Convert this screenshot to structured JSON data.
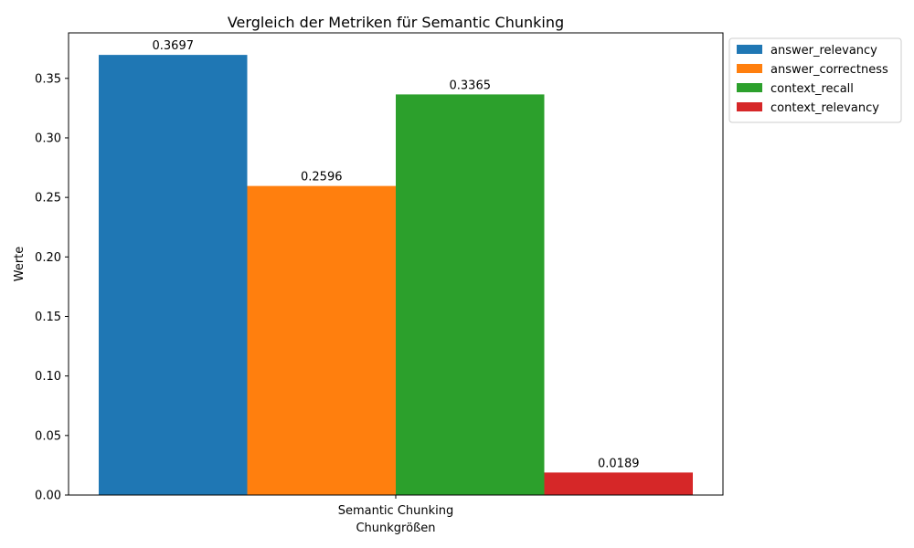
{
  "chart_data": {
    "type": "bar",
    "title": "Vergleich der Metriken für Semantic Chunking",
    "xlabel": "Chunkgrößen",
    "ylabel": "Werte",
    "categories": [
      "Semantic Chunking"
    ],
    "ylim": [
      0,
      0.3882
    ],
    "yticks": [
      0.0,
      0.05,
      0.1,
      0.15,
      0.2,
      0.25,
      0.3,
      0.35
    ],
    "ytick_labels": [
      "0.00",
      "0.05",
      "0.10",
      "0.15",
      "0.20",
      "0.25",
      "0.30",
      "0.35"
    ],
    "grid": false,
    "legend_position": "outside-top-right",
    "series": [
      {
        "name": "answer_relevancy",
        "values": [
          0.3697
        ],
        "label": "0.3697",
        "color": "#1f77b4"
      },
      {
        "name": "answer_correctness",
        "values": [
          0.2596
        ],
        "label": "0.2596",
        "color": "#ff7f0e"
      },
      {
        "name": "context_recall",
        "values": [
          0.3365
        ],
        "label": "0.3365",
        "color": "#2ca02c"
      },
      {
        "name": "context_relevancy",
        "values": [
          0.0189
        ],
        "label": "0.0189",
        "color": "#d62728"
      }
    ]
  }
}
